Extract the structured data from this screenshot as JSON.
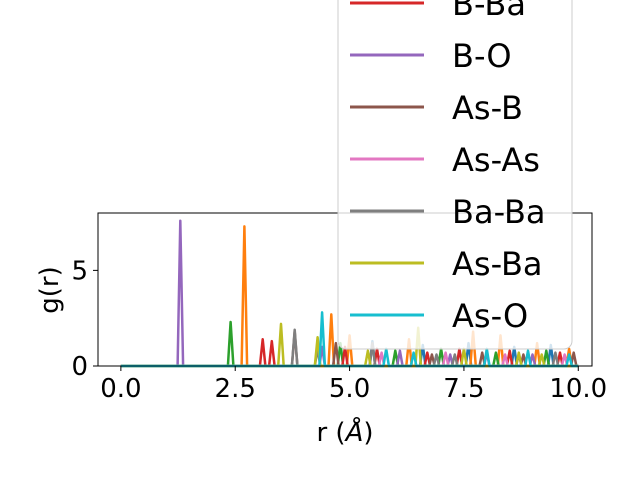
{
  "chart_data": {
    "type": "line",
    "xlabel_text": "r (",
    "xlabel_unit": "Å",
    "xlabel_close": ")",
    "ylabel": "g(r)",
    "xlim": [
      -0.5,
      10.3
    ],
    "ylim": [
      0,
      8
    ],
    "xticks": [
      0.0,
      2.5,
      5.0,
      7.5,
      10.0
    ],
    "xtick_labels": [
      "0.0",
      "2.5",
      "5.0",
      "7.5",
      "10.0"
    ],
    "yticks": [
      0,
      5
    ],
    "ytick_labels": [
      "0",
      "5"
    ],
    "legend_position": "upper-right (extends above axes)",
    "series": [
      {
        "name": "",
        "color": "#1f77b4",
        "peaks": [
          [
            5.5,
            1.3
          ],
          [
            6.6,
            1.1
          ],
          [
            7.6,
            1.2
          ],
          [
            8.6,
            1.0
          ],
          [
            9.4,
            1.1
          ]
        ]
      },
      {
        "name": "",
        "color": "#ff7f0e",
        "peaks": [
          [
            2.7,
            7.3
          ],
          [
            4.6,
            2.7
          ],
          [
            5.0,
            1.6
          ],
          [
            6.3,
            1.4
          ],
          [
            7.7,
            1.8
          ],
          [
            8.3,
            1.6
          ],
          [
            9.1,
            1.2
          ],
          [
            9.8,
            0.9
          ]
        ]
      },
      {
        "name": "",
        "color": "#2ca02c",
        "peaks": [
          [
            2.4,
            2.3
          ],
          [
            4.8,
            1.2
          ],
          [
            6.0,
            0.8
          ],
          [
            7.0,
            0.9
          ],
          [
            8.2,
            0.7
          ],
          [
            9.3,
            0.8
          ]
        ]
      },
      {
        "name": "B-Ba",
        "color": "#d62728",
        "peaks": [
          [
            3.1,
            1.4
          ],
          [
            3.3,
            1.3
          ],
          [
            4.9,
            1.0
          ],
          [
            5.6,
            0.9
          ],
          [
            6.7,
            0.7
          ],
          [
            7.4,
            0.9
          ],
          [
            8.5,
            0.8
          ],
          [
            9.6,
            0.7
          ]
        ]
      },
      {
        "name": "B-O",
        "color": "#9467bd",
        "peaks": [
          [
            1.3,
            7.6
          ],
          [
            4.4,
            1.0
          ],
          [
            6.1,
            0.8
          ],
          [
            7.2,
            0.6
          ],
          [
            8.0,
            0.7
          ],
          [
            9.0,
            0.6
          ]
        ]
      },
      {
        "name": "As-B",
        "color": "#8c564b",
        "peaks": [
          [
            3.8,
            1.8
          ],
          [
            4.7,
            1.2
          ],
          [
            6.8,
            0.6
          ],
          [
            7.9,
            0.7
          ],
          [
            8.8,
            0.6
          ],
          [
            9.9,
            0.7
          ]
        ]
      },
      {
        "name": "As-As",
        "color": "#e377c2",
        "peaks": [
          [
            5.7,
            0.7
          ],
          [
            7.1,
            0.7
          ],
          [
            8.4,
            0.6
          ],
          [
            9.7,
            0.6
          ]
        ]
      },
      {
        "name": "Ba-Ba",
        "color": "#7f7f7f",
        "peaks": [
          [
            3.8,
            1.9
          ],
          [
            4.3,
            0.9
          ],
          [
            5.5,
            1.2
          ],
          [
            6.9,
            0.6
          ],
          [
            7.3,
            0.6
          ],
          [
            8.7,
            0.6
          ],
          [
            9.5,
            0.7
          ]
        ]
      },
      {
        "name": "As-Ba",
        "color": "#bcbd22",
        "peaks": [
          [
            3.5,
            2.2
          ],
          [
            4.3,
            1.5
          ],
          [
            5.4,
            0.8
          ],
          [
            6.5,
            2.0
          ],
          [
            7.5,
            0.9
          ],
          [
            8.7,
            0.7
          ],
          [
            9.2,
            0.6
          ]
        ]
      },
      {
        "name": "As-O",
        "color": "#17becf",
        "peaks": [
          [
            4.4,
            2.8
          ],
          [
            5.8,
            0.9
          ],
          [
            6.4,
            0.7
          ],
          [
            8.0,
            0.9
          ],
          [
            8.9,
            0.8
          ],
          [
            9.8,
            0.6
          ]
        ]
      }
    ]
  }
}
